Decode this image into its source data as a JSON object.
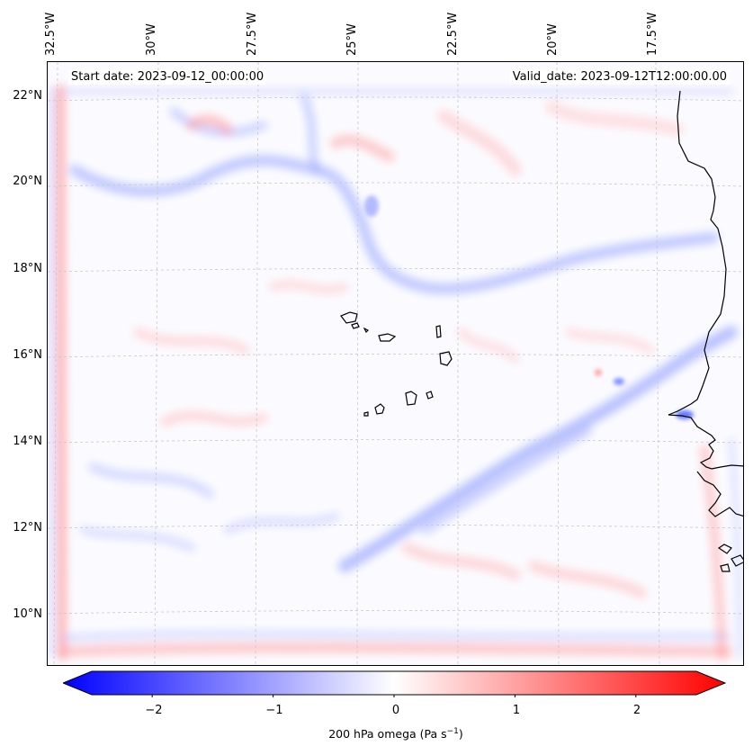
{
  "map": {
    "start_date": "Start date: 2023-09-12_00:00:00",
    "valid_date": "Valid_date: 2023-09-12T12:00:00.00",
    "lon_labels": [
      "32.5°W",
      "30°W",
      "27.5°W",
      "25°W",
      "22.5°W",
      "20°W",
      "17.5°W"
    ],
    "lat_labels": [
      "22°N",
      "20°N",
      "18°N",
      "16°N",
      "14°N",
      "12°N",
      "10°N"
    ],
    "colorbar": {
      "ticks": [
        "−2",
        "−1",
        "0",
        "1",
        "2"
      ],
      "tick_values": [
        -2,
        -1,
        0,
        1,
        2
      ],
      "range": [
        -2.5,
        2.5
      ],
      "label_main": "200 hPa omega (Pa s",
      "label_exp": "−1",
      "label_end": ")",
      "colormap": "bwr"
    },
    "colors": {
      "negative": "#0000ff",
      "neutral": "#ffffff",
      "positive": "#ff0000",
      "coastline": "#000000",
      "gridline": "#c8c8c8"
    }
  }
}
